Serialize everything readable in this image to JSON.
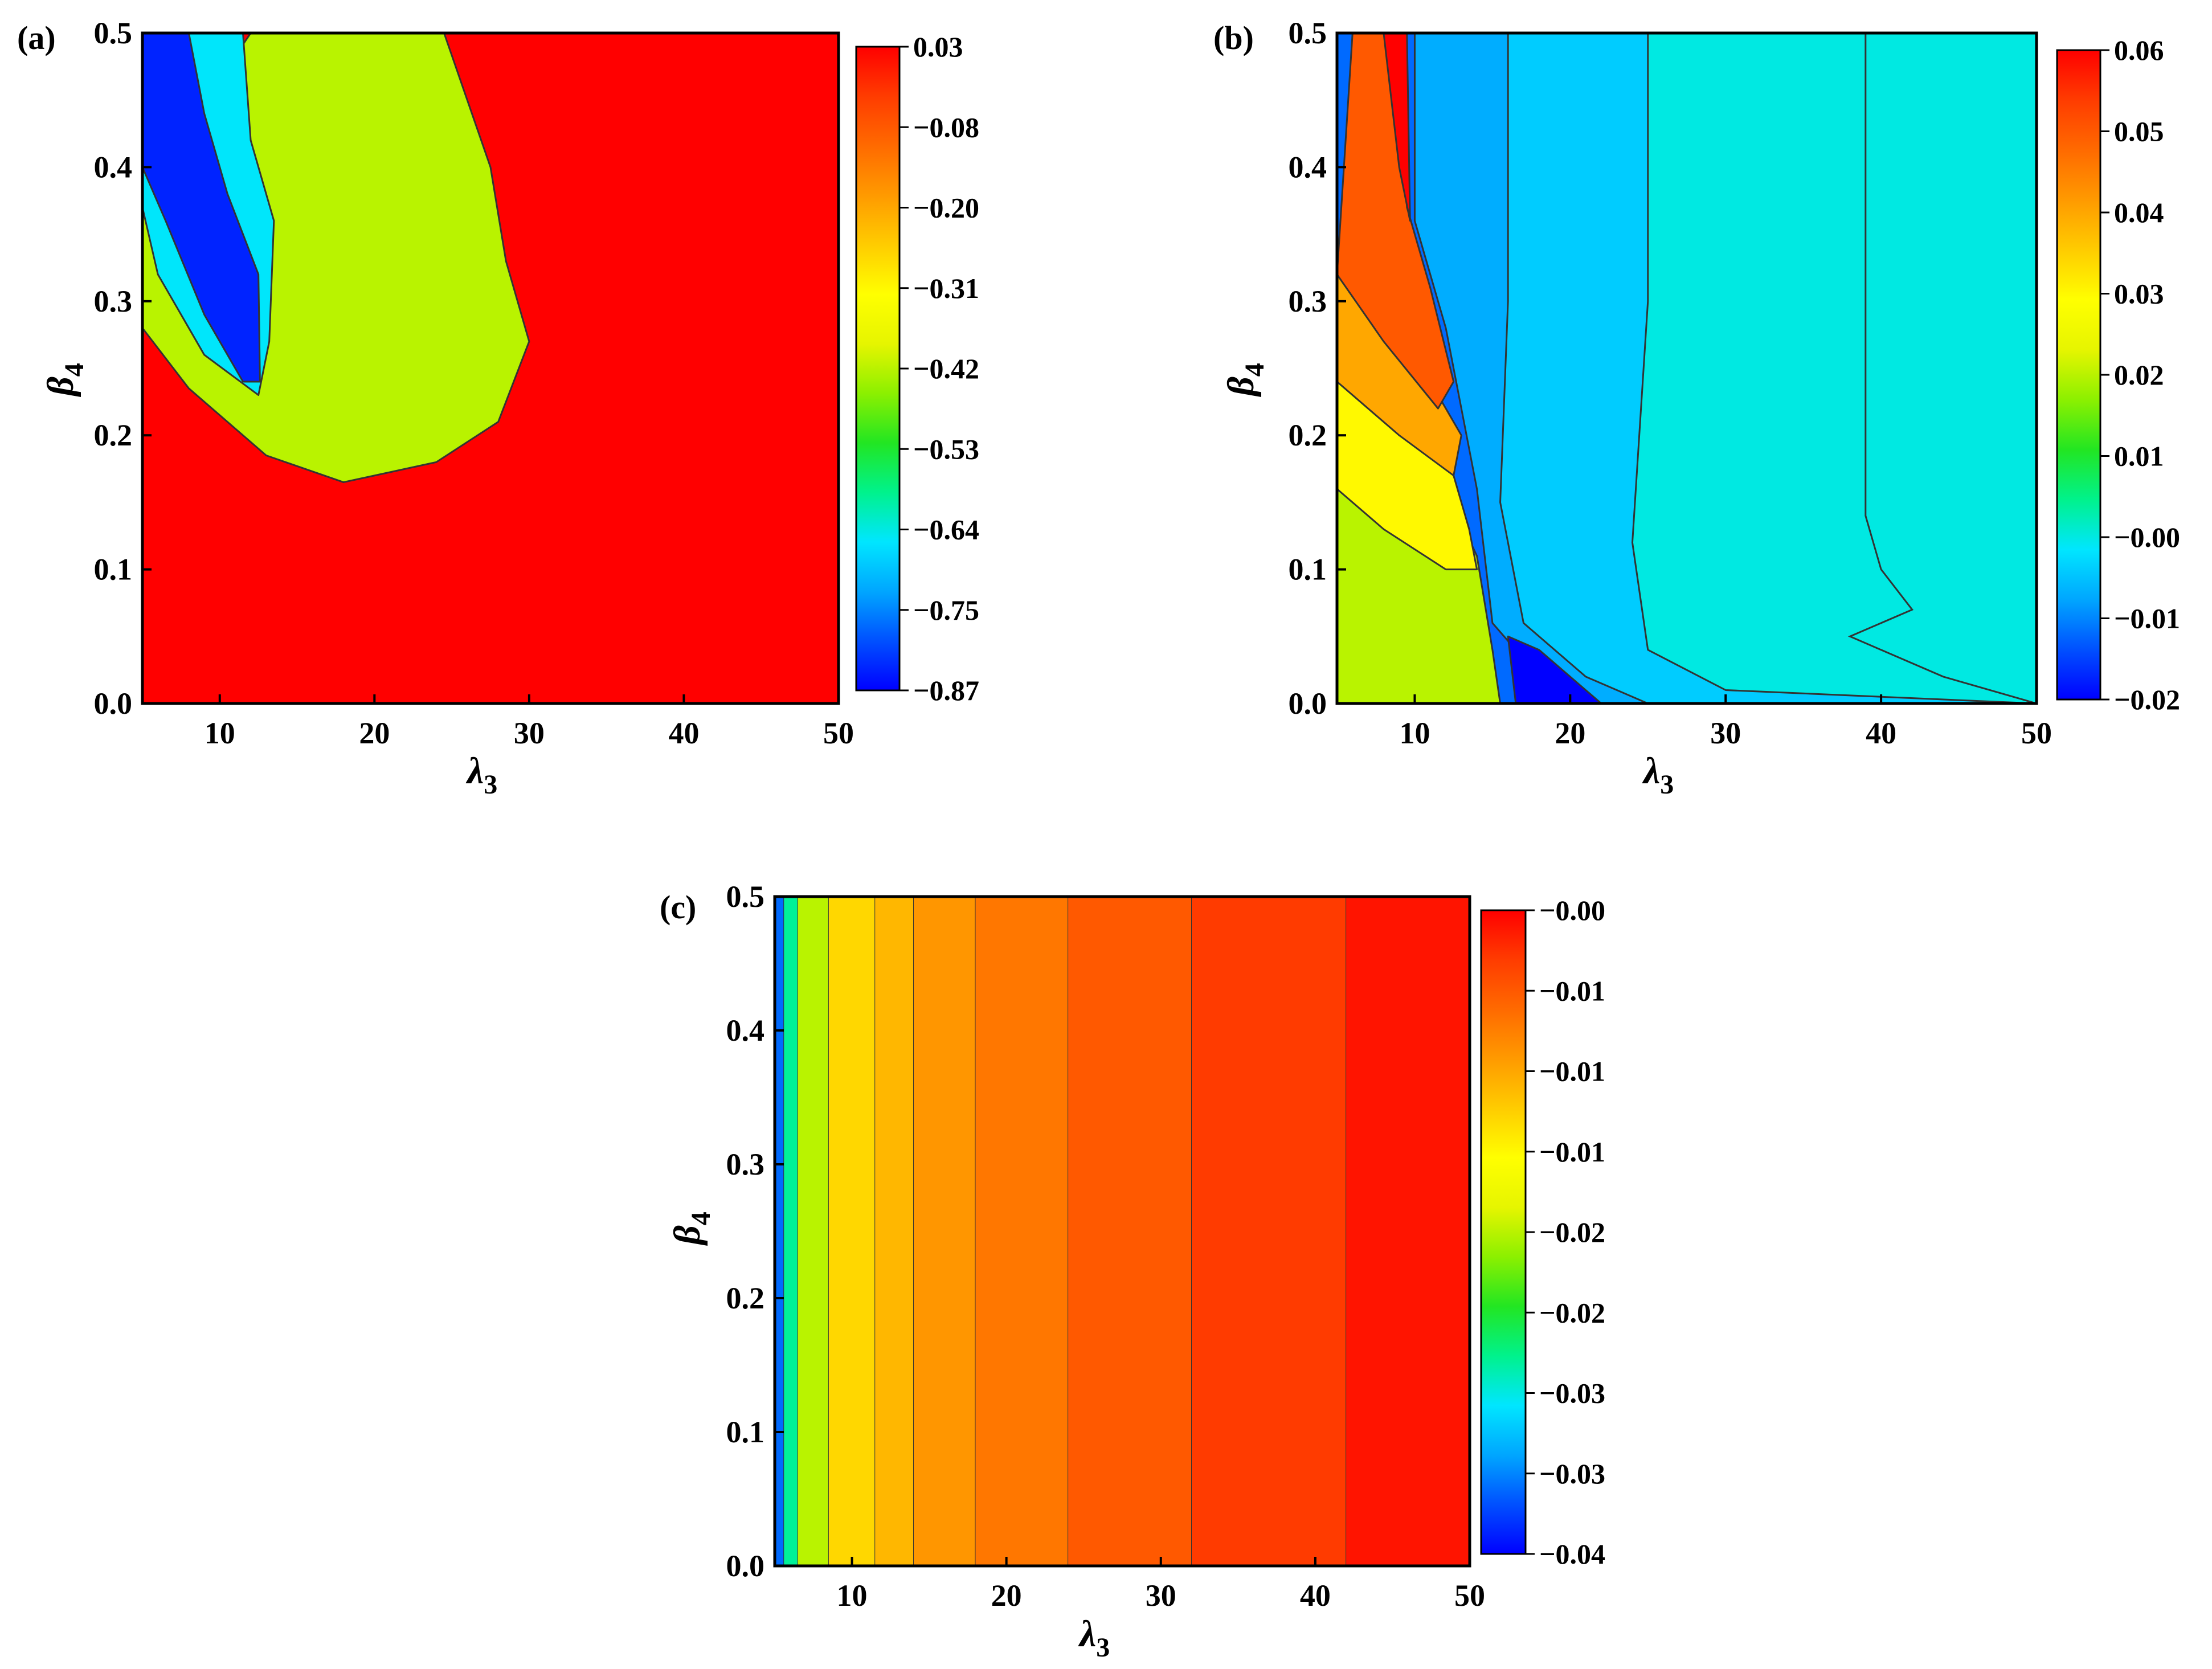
{
  "colors": {
    "colormap": [
      "#0000ff",
      "#0050ff",
      "#00a6ff",
      "#00e6ff",
      "#00f28c",
      "#22e622",
      "#8cf000",
      "#e6f500",
      "#ffff00",
      "#ffcc00",
      "#ff9a00",
      "#ff6a00",
      "#ff3c00",
      "#ff0000"
    ],
    "contour_line": "#333333",
    "frame": "#000000"
  },
  "chart_data": [
    {
      "panel": "(a)",
      "type": "heatmap",
      "subtype": "filled-contour",
      "xlabel": "λ",
      "xlabel_sub": "3",
      "ylabel": "β",
      "ylabel_sub": "4",
      "xlim": [
        5,
        50
      ],
      "ylim": [
        0,
        0.5
      ],
      "x_ticks": [
        "10",
        "20",
        "30",
        "40",
        "50"
      ],
      "y_ticks": [
        "0.0",
        "0.1",
        "0.2",
        "0.3",
        "0.4",
        "0.5"
      ],
      "colorbar": {
        "range": [
          -0.87,
          0.03
        ],
        "tick_labels": [
          "0.03",
          "−0.08",
          "−0.20",
          "−0.31",
          "−0.42",
          "−0.53",
          "−0.64",
          "−0.75",
          "−0.87"
        ]
      },
      "regions": [
        {
          "level": "background",
          "value": 0.03,
          "area": "whole domain outside the loop region"
        },
        {
          "level": "green",
          "value": -0.42,
          "boundary": [
            [
              5,
              0.38
            ],
            [
              12,
              0.5
            ],
            [
              24.5,
              0.5
            ],
            [
              26,
              0.45
            ],
            [
              27.5,
              0.4
            ],
            [
              28.5,
              0.33
            ],
            [
              30,
              0.27
            ],
            [
              28,
              0.21
            ],
            [
              24,
              0.18
            ],
            [
              18,
              0.165
            ],
            [
              13,
              0.185
            ],
            [
              8,
              0.235
            ],
            [
              5,
              0.28
            ]
          ]
        },
        {
          "level": "cyan",
          "value": -0.66,
          "boundary": [
            [
              5,
              0.5
            ],
            [
              11.5,
              0.5
            ],
            [
              12,
              0.42
            ],
            [
              13.5,
              0.36
            ],
            [
              13.2,
              0.27
            ],
            [
              12.5,
              0.23
            ],
            [
              9,
              0.26
            ],
            [
              6,
              0.32
            ],
            [
              5,
              0.37
            ]
          ]
        },
        {
          "level": "blue",
          "value": -0.84,
          "boundary": [
            [
              5,
              0.5
            ],
            [
              8,
              0.5
            ],
            [
              9,
              0.44
            ],
            [
              10.5,
              0.38
            ],
            [
              12.5,
              0.32
            ],
            [
              12.6,
              0.24
            ],
            [
              11.5,
              0.24
            ],
            [
              9,
              0.29
            ],
            [
              6.5,
              0.36
            ],
            [
              5,
              0.4
            ]
          ]
        }
      ]
    },
    {
      "panel": "(b)",
      "type": "heatmap",
      "subtype": "filled-contour",
      "xlabel": "λ",
      "xlabel_sub": "3",
      "ylabel": "β",
      "ylabel_sub": "4",
      "xlim": [
        5,
        50
      ],
      "ylim": [
        0,
        0.5
      ],
      "x_ticks": [
        "10",
        "20",
        "30",
        "40",
        "50"
      ],
      "y_ticks": [
        "0.0",
        "0.1",
        "0.2",
        "0.3",
        "0.4",
        "0.5"
      ],
      "colorbar": {
        "range": [
          -0.02,
          0.06
        ],
        "tick_labels": [
          "0.06",
          "0.05",
          "0.04",
          "0.03",
          "0.02",
          "0.01",
          "−0.00",
          "−0.01",
          "−0.02"
        ]
      },
      "regions": [
        {
          "level": "background",
          "value": 0.0
        },
        {
          "level": "light-blue",
          "value": -0.004,
          "boundary": [
            [
              5,
              0.5
            ],
            [
              25,
              0.5
            ],
            [
              25,
              0.3
            ],
            [
              24,
              0.12
            ],
            [
              25,
              0.04
            ],
            [
              30,
              0.01
            ],
            [
              50,
              0.0
            ],
            [
              5,
              0.0
            ]
          ]
        },
        {
          "level": "medium-blue",
          "value": -0.007,
          "boundary": [
            [
              5,
              0.5
            ],
            [
              16,
              0.5
            ],
            [
              16,
              0.3
            ],
            [
              15.5,
              0.15
            ],
            [
              17,
              0.06
            ],
            [
              21,
              0.02
            ],
            [
              25,
              0.0
            ],
            [
              5,
              0.0
            ]
          ]
        },
        {
          "level": "deep-blue",
          "value": -0.012,
          "boundary": [
            [
              5,
              0.5
            ],
            [
              10,
              0.5
            ],
            [
              10,
              0.36
            ],
            [
              12,
              0.28
            ],
            [
              14,
              0.16
            ],
            [
              15,
              0.06
            ],
            [
              18,
              0.02
            ],
            [
              21.5,
              0.0
            ],
            [
              5,
              0.0
            ]
          ]
        },
        {
          "level": "dark-blue-pocket",
          "value": -0.02,
          "boundary": [
            [
              16,
              0.05
            ],
            [
              18,
              0.04
            ],
            [
              21,
              0.01
            ],
            [
              22,
              0.0
            ],
            [
              16.5,
              0.0
            ]
          ]
        },
        {
          "level": "green",
          "value": 0.02,
          "boundary": [
            [
              5,
              0.22
            ],
            [
              12,
              0.16
            ],
            [
              14,
              0.11
            ],
            [
              15,
              0.04
            ],
            [
              15.5,
              0.0
            ],
            [
              5,
              0.0
            ]
          ]
        },
        {
          "level": "yellow-green",
          "value": 0.03,
          "boundary": [
            [
              5,
              0.27
            ],
            [
              9,
              0.23
            ],
            [
              12,
              0.19
            ],
            [
              13.5,
              0.13
            ],
            [
              14,
              0.1
            ],
            [
              12,
              0.1
            ],
            [
              8,
              0.13
            ],
            [
              5,
              0.16
            ]
          ]
        },
        {
          "level": "yellow",
          "value": 0.04,
          "boundary": [
            [
              5,
              0.33
            ],
            [
              8,
              0.29
            ],
            [
              11,
              0.24
            ],
            [
              13,
              0.2
            ],
            [
              12.5,
              0.17
            ],
            [
              9,
              0.2
            ],
            [
              5,
              0.24
            ]
          ]
        },
        {
          "level": "orange",
          "value": 0.05,
          "boundary": [
            [
              6,
              0.5
            ],
            [
              9,
              0.5
            ],
            [
              9.5,
              0.37
            ],
            [
              11,
              0.31
            ],
            [
              12.5,
              0.24
            ],
            [
              11.5,
              0.22
            ],
            [
              8,
              0.27
            ],
            [
              5,
              0.32
            ]
          ]
        },
        {
          "level": "red",
          "value": 0.06,
          "boundary": [
            [
              8,
              0.5
            ],
            [
              9.5,
              0.5
            ],
            [
              9.7,
              0.36
            ],
            [
              9,
              0.4
            ],
            [
              8.5,
              0.45
            ]
          ]
        }
      ],
      "contour_annotation": {
        "note": "vertical contour near λ3≈39 bending to λ3≈42 at β4≈0.07 then to (50,0)"
      }
    },
    {
      "panel": "(c)",
      "type": "heatmap",
      "subtype": "filled-contour",
      "xlabel": "λ",
      "xlabel_sub": "3",
      "ylabel": "β",
      "ylabel_sub": "4",
      "xlim": [
        5,
        50
      ],
      "ylim": [
        0,
        0.5
      ],
      "x_ticks": [
        "10",
        "20",
        "30",
        "40",
        "50"
      ],
      "y_ticks": [
        "0.0",
        "0.1",
        "0.2",
        "0.3",
        "0.4",
        "0.5"
      ],
      "colorbar": {
        "range": [
          -0.04,
          0.0
        ],
        "tick_labels": [
          "−0.00",
          "−0.01",
          "−0.01",
          "−0.01",
          "−0.02",
          "−0.02",
          "−0.03",
          "−0.03",
          "−0.04"
        ]
      },
      "vertical_bands": [
        {
          "x_from": 5,
          "x_to": 5.6,
          "value": -0.036
        },
        {
          "x_from": 5.6,
          "x_to": 6.5,
          "value": -0.028
        },
        {
          "x_from": 6.5,
          "x_to": 8.5,
          "value": -0.02
        },
        {
          "x_from": 8.5,
          "x_to": 11.5,
          "value": -0.013
        },
        {
          "x_from": 11.5,
          "x_to": 14,
          "value": -0.011
        },
        {
          "x_from": 14,
          "x_to": 18,
          "value": -0.009
        },
        {
          "x_from": 18,
          "x_to": 24,
          "value": -0.007
        },
        {
          "x_from": 24,
          "x_to": 32,
          "value": -0.005
        },
        {
          "x_from": 32,
          "x_to": 42,
          "value": -0.003
        },
        {
          "x_from": 42,
          "x_to": 50,
          "value": -0.001
        }
      ]
    }
  ]
}
